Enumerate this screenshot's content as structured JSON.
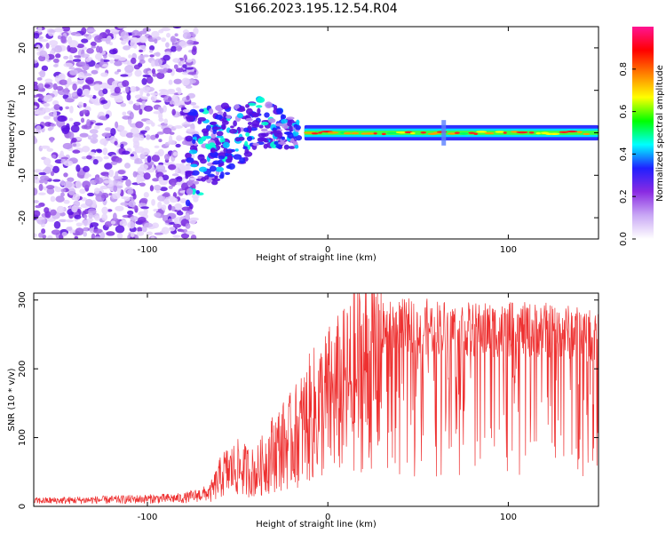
{
  "title": "S166.2023.195.12.54.R04",
  "chart_data": [
    {
      "type": "heatmap",
      "xlabel": "Height of straight line (km)",
      "ylabel": "Frequency (Hz)",
      "xlim": [
        -163,
        150
      ],
      "ylim": [
        -25,
        25
      ],
      "xticks": [
        "-100",
        "0",
        "100"
      ],
      "yticks": [
        "-20",
        "-10",
        "0",
        "10",
        "20"
      ],
      "grid": false,
      "colorbar": {
        "label": "Normalized spectral amplitude",
        "range": [
          0,
          1
        ],
        "ticks": [
          "0.0",
          "0.2",
          "0.4",
          "0.6",
          "0.8"
        ],
        "colors": [
          "#ffffff",
          "#c9a8f5",
          "#8a2be2",
          "#2020ff",
          "#00ffff",
          "#00ff00",
          "#ffff00",
          "#ff8000",
          "#ff0000",
          "#ff1493"
        ]
      }
    },
    {
      "type": "line",
      "xlabel": "Height of straight line (km)",
      "ylabel": "SNR (10 * v/v)",
      "xlim": [
        -163,
        150
      ],
      "ylim": [
        0,
        310
      ],
      "xticks": [
        "-100",
        "0",
        "100"
      ],
      "yticks": [
        "0",
        "100",
        "200",
        "300"
      ],
      "line_color": "#ee3030",
      "grid": false,
      "envelope": {
        "x": [
          -163,
          -120,
          -80,
          -65,
          -58,
          -50,
          -40,
          -30,
          -20,
          -10,
          0,
          10,
          20,
          30,
          40,
          60,
          80,
          100,
          120,
          140,
          150
        ],
        "y": [
          10,
          12,
          15,
          25,
          60,
          70,
          60,
          100,
          120,
          160,
          190,
          210,
          250,
          270,
          275,
          275,
          270,
          270,
          270,
          265,
          260
        ]
      }
    }
  ]
}
